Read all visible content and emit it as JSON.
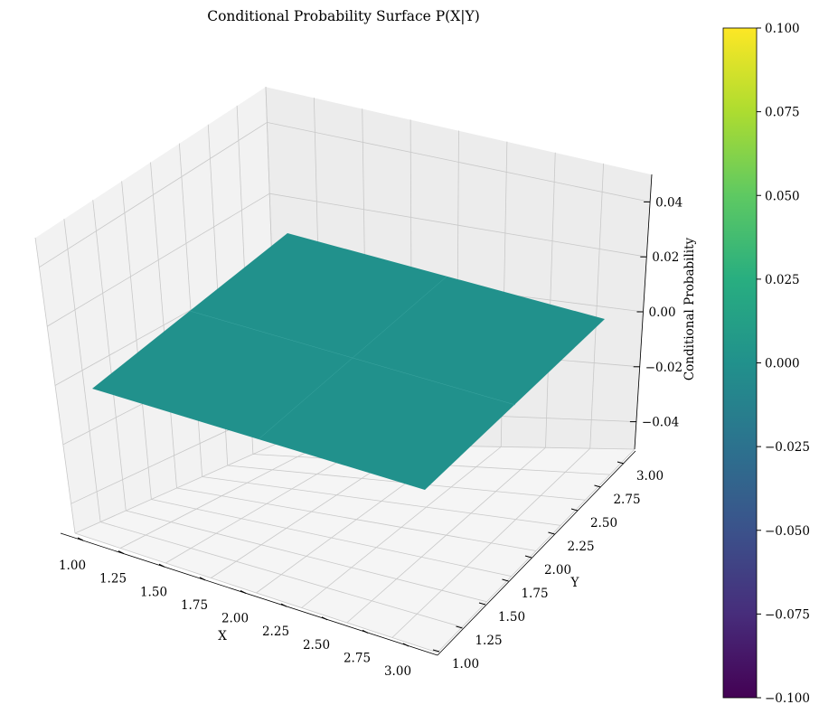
{
  "chart_data": {
    "type": "surface",
    "title": "Conditional Probability Surface P(X|Y)",
    "xlabel": "X",
    "ylabel": "Y",
    "zlabel": "Conditional Probability",
    "x": [
      1.0,
      2.0,
      3.0
    ],
    "y": [
      1.0,
      2.0,
      3.0
    ],
    "z": [
      [
        0,
        0,
        0
      ],
      [
        0,
        0,
        0
      ],
      [
        0,
        0,
        0
      ]
    ],
    "xlim": [
      1.0,
      3.0
    ],
    "ylim": [
      1.0,
      3.0
    ],
    "zlim": [
      -0.05,
      0.05
    ],
    "x_ticks": [
      "1.00",
      "1.25",
      "1.50",
      "1.75",
      "2.00",
      "2.25",
      "2.50",
      "2.75",
      "3.00"
    ],
    "y_ticks": [
      "1.00",
      "1.25",
      "1.50",
      "1.75",
      "2.00",
      "2.25",
      "2.50",
      "2.75",
      "3.00"
    ],
    "z_ticks": [
      "−0.04",
      "−0.02",
      "0.00",
      "0.02",
      "0.04"
    ],
    "z_tick_values": [
      -0.04,
      -0.02,
      0.0,
      0.02,
      0.04
    ],
    "surface_color": "#21918c",
    "colormap": "viridis",
    "colorbar": {
      "ticks": [
        "0.100",
        "0.075",
        "0.050",
        "0.025",
        "0.000",
        "−0.025",
        "−0.050",
        "−0.075",
        "−0.100"
      ],
      "range": [
        -0.1,
        0.1
      ]
    },
    "grid": true
  }
}
